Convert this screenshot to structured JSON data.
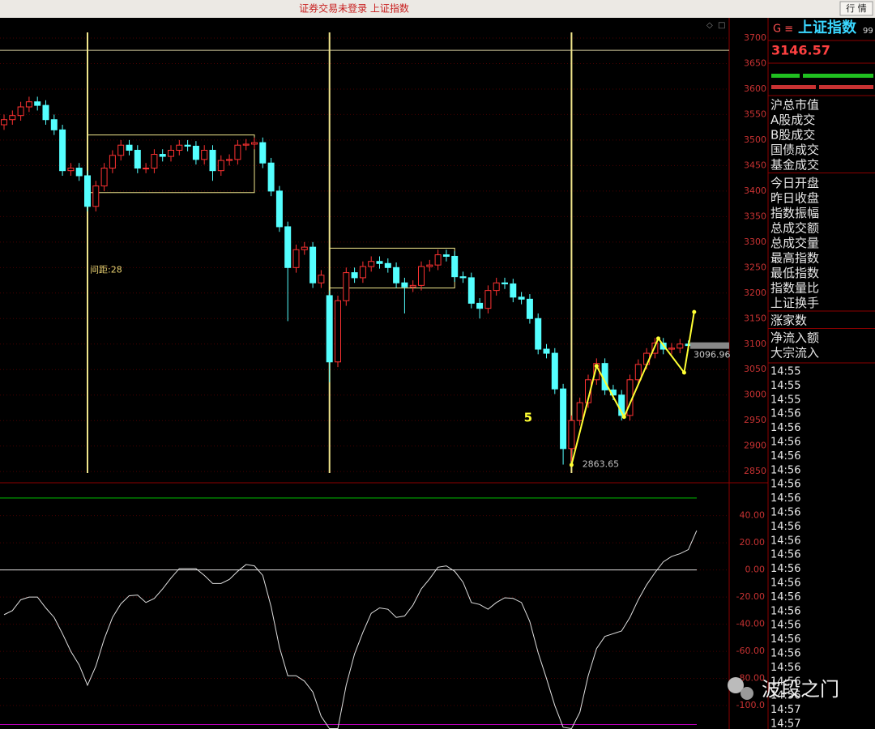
{
  "ui": {
    "top_title": "证券交易未登录  上证指数",
    "top_button": "行 情",
    "panel_prefix": "G ≡",
    "panel_title": "上证指数",
    "panel_suffix": "99",
    "price": "3146.57",
    "fields": [
      "沪总市值",
      "A股成交",
      "B股成交",
      "国债成交",
      "基金成交",
      "今日开盘",
      "昨日收盘",
      "指数振幅",
      "总成交额",
      "总成交量",
      "最高指数",
      "最低指数",
      "指数量比",
      "上证换手",
      "涨家数",
      "净流入额",
      "大宗流入"
    ],
    "times": [
      "14:55",
      "14:55",
      "14:55",
      "14:56",
      "14:56",
      "14:56",
      "14:56",
      "14:56",
      "14:56",
      "14:56",
      "14:56",
      "14:56",
      "14:56",
      "14:56",
      "14:56",
      "14:56",
      "14:56",
      "14:56",
      "14:56",
      "14:56",
      "14:56",
      "14:56",
      "14:56",
      "14:56",
      "14:57",
      "14:57"
    ],
    "watermark": "波段之门"
  },
  "chart_data": [
    {
      "type": "candlestick",
      "up_color": "#ff3232",
      "down_color": "#54ffff",
      "open": [
        3530,
        3540,
        3548,
        3565,
        3575,
        3568,
        3540,
        3520,
        3440,
        3445,
        3430,
        3370,
        3410,
        3445,
        3470,
        3490,
        3480,
        3445,
        3445,
        3472,
        3468,
        3480,
        3490,
        3488,
        3462,
        3480,
        3440,
        3460,
        3462,
        3490,
        3492,
        3495,
        3455,
        3400,
        3330,
        3250,
        3285,
        3290,
        3220,
        3195,
        3065,
        3185,
        3240,
        3230,
        3252,
        3262,
        3258,
        3250,
        3220,
        3212,
        3215,
        3252,
        3255,
        3275,
        3272,
        3232,
        3230,
        3180,
        3170,
        3205,
        3220,
        3218,
        3192,
        3188,
        3150,
        3090,
        3082,
        3012,
        2895,
        2950,
        2985,
        3030,
        3062,
        3010,
        3000,
        2960,
        3030,
        3060,
        3082,
        3102,
        3090,
        3092,
        3100
      ],
      "high": [
        3550,
        3558,
        3575,
        3585,
        3585,
        3578,
        3550,
        3530,
        3455,
        3455,
        3440,
        3420,
        3455,
        3480,
        3500,
        3500,
        3490,
        3455,
        3482,
        3482,
        3490,
        3500,
        3500,
        3498,
        3490,
        3490,
        3470,
        3472,
        3500,
        3502,
        3505,
        3505,
        3465,
        3410,
        3340,
        3295,
        3300,
        3300,
        3245,
        3205,
        3195,
        3250,
        3250,
        3262,
        3272,
        3272,
        3268,
        3260,
        3230,
        3225,
        3262,
        3265,
        3285,
        3285,
        3282,
        3242,
        3240,
        3190,
        3215,
        3230,
        3230,
        3228,
        3202,
        3198,
        3160,
        3100,
        3092,
        3022,
        2960,
        2995,
        3040,
        3072,
        3072,
        3020,
        3010,
        3040,
        3070,
        3092,
        3112,
        3112,
        3102,
        3110,
        3107
      ],
      "low": [
        3520,
        3530,
        3538,
        3555,
        3558,
        3530,
        3510,
        3430,
        3430,
        3420,
        3360,
        3360,
        3400,
        3435,
        3460,
        3470,
        3435,
        3435,
        3435,
        3458,
        3458,
        3470,
        3478,
        3452,
        3452,
        3420,
        3430,
        3450,
        3452,
        3480,
        3482,
        3445,
        3390,
        3320,
        3145,
        3240,
        3275,
        3210,
        3210,
        3025,
        3055,
        3175,
        3220,
        3220,
        3242,
        3248,
        3240,
        3210,
        3160,
        3202,
        3205,
        3242,
        3245,
        3262,
        3222,
        3220,
        3170,
        3150,
        3160,
        3195,
        3208,
        3182,
        3178,
        3140,
        3080,
        3072,
        3002,
        2863.65,
        2870,
        2940,
        2975,
        3020,
        3000,
        2990,
        2950,
        2950,
        3020,
        3050,
        3072,
        3080,
        3080,
        3082,
        3087
      ],
      "close": [
        3540,
        3548,
        3565,
        3575,
        3568,
        3540,
        3520,
        3440,
        3445,
        3430,
        3370,
        3410,
        3445,
        3470,
        3490,
        3480,
        3445,
        3445,
        3472,
        3468,
        3480,
        3490,
        3488,
        3462,
        3480,
        3440,
        3460,
        3462,
        3490,
        3492,
        3495,
        3455,
        3400,
        3330,
        3250,
        3285,
        3290,
        3220,
        3235,
        3065,
        3185,
        3240,
        3230,
        3252,
        3262,
        3258,
        3250,
        3220,
        3212,
        3215,
        3252,
        3255,
        3275,
        3272,
        3232,
        3230,
        3180,
        3170,
        3205,
        3220,
        3218,
        3192,
        3188,
        3150,
        3090,
        3082,
        3012,
        2895,
        2950,
        2985,
        3030,
        3062,
        3010,
        3000,
        2960,
        3030,
        3060,
        3082,
        3102,
        3090,
        3092,
        3100,
        3097
      ],
      "ylim": [
        2828,
        3727
      ],
      "yticks": [
        3700,
        3650,
        3600,
        3550,
        3500,
        3450,
        3400,
        3350,
        3300,
        3250,
        3200,
        3150,
        3100,
        3050,
        3000,
        2950,
        2900,
        2850
      ],
      "grid": true,
      "vlines": [
        10,
        39,
        68
      ],
      "hlines": [
        3676
      ],
      "boxes": [
        {
          "x": [
            10,
            30
          ],
          "y": [
            3397,
            3510
          ]
        },
        {
          "x": [
            39,
            54
          ],
          "y": [
            3210,
            3288
          ]
        }
      ],
      "zigzag": {
        "x": [
          68,
          71,
          74.3,
          78.4,
          81.5,
          82.7
        ],
        "y": [
          2863,
          3057,
          2957,
          3111,
          3044,
          3163
        ],
        "color": "#ffff33"
      },
      "annotations": [
        {
          "text": "5",
          "x": 62,
          "y": 2955,
          "color": "#ffff33"
        },
        {
          "text": "间距:28",
          "x": 10,
          "y": 3245,
          "color": "#e8d070"
        },
        {
          "text": "2863.65",
          "x": 69,
          "y": 2863.65,
          "color": "#c0c0c0"
        }
      ],
      "last_price": {
        "value": 3096.96,
        "label": "3096.96"
      }
    },
    {
      "type": "line",
      "color": "#e0e0e0",
      "values": [
        -33,
        -30,
        -22,
        -20,
        -20,
        -28,
        -35,
        -47,
        -60,
        -70,
        -85,
        -71,
        -51,
        -35,
        -25,
        -19,
        -18.5,
        -24,
        -21,
        -14,
        -6,
        1,
        1,
        1,
        -4,
        -10,
        -10,
        -7,
        -1,
        4,
        3,
        -4,
        -27,
        -57,
        -78,
        -78,
        -82,
        -90,
        -108,
        -117,
        -117,
        -85,
        -62,
        -46,
        -32,
        -28,
        -29,
        -35,
        -34,
        -26,
        -14,
        -6.5,
        2,
        3,
        -1,
        -9,
        -24,
        -25.5,
        -29,
        -24,
        -20.5,
        -21,
        -24,
        -38,
        -61,
        -80,
        -100,
        -116,
        -117,
        -105,
        -78,
        -58,
        -49,
        -47,
        -45,
        -35,
        -22,
        -11,
        -2,
        6,
        10,
        12,
        15,
        29
      ],
      "ylim": [
        -117.3,
        63.7
      ],
      "yticks": [
        {
          "value": 40,
          "label": "40.00"
        },
        {
          "value": 20,
          "label": "20.00"
        },
        {
          "value": 0,
          "label": "0.00"
        },
        {
          "value": -20,
          "label": "-20.00"
        },
        {
          "value": -40,
          "label": "-40.00"
        },
        {
          "value": -60,
          "label": "-60.00"
        },
        {
          "value": -80,
          "label": "-80.00"
        },
        {
          "value": -100,
          "label": "-100.0"
        }
      ],
      "grid": true,
      "hlines": [
        {
          "value": 53,
          "color": "#00c800"
        },
        {
          "value": 0,
          "color": "#e0e0e0"
        },
        {
          "value": -114,
          "color": "#c000c0"
        }
      ]
    }
  ]
}
